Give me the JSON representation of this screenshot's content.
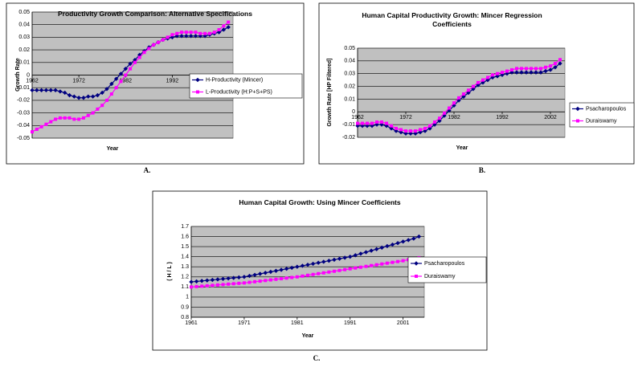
{
  "chart_data": [
    {
      "type": "line",
      "title": "Productivity Growth Comparison: Alternative Specifications",
      "xlabel": "Year",
      "ylabel": "Growth Rate",
      "caption": "A.",
      "x": [
        1962,
        1963,
        1964,
        1965,
        1966,
        1967,
        1968,
        1969,
        1970,
        1971,
        1972,
        1973,
        1974,
        1975,
        1976,
        1977,
        1978,
        1979,
        1980,
        1981,
        1982,
        1983,
        1984,
        1985,
        1986,
        1987,
        1988,
        1989,
        1990,
        1991,
        1992,
        1993,
        1994,
        1995,
        1996,
        1997,
        1998,
        1999,
        2000,
        2001,
        2002,
        2003,
        2004
      ],
      "xlim": [
        1962,
        2005
      ],
      "xticks": [
        1962,
        1972,
        1982,
        1992,
        2002
      ],
      "ylim": [
        -0.05,
        0.05
      ],
      "yticks": [
        -0.05,
        -0.04,
        -0.03,
        -0.02,
        -0.01,
        0,
        0.01,
        0.02,
        0.03,
        0.04,
        0.05
      ],
      "grid": true,
      "series": [
        {
          "name": "H-Productivity (Mincer)",
          "color": "#000080",
          "marker": "diamond",
          "values": [
            -0.012,
            -0.012,
            -0.012,
            -0.012,
            -0.012,
            -0.012,
            -0.013,
            -0.014,
            -0.016,
            -0.017,
            -0.018,
            -0.018,
            -0.017,
            -0.017,
            -0.016,
            -0.014,
            -0.011,
            -0.007,
            -0.003,
            0.001,
            0.005,
            0.009,
            0.012,
            0.016,
            0.019,
            0.022,
            0.024,
            0.026,
            0.028,
            0.029,
            0.03,
            0.031,
            0.031,
            0.031,
            0.031,
            0.031,
            0.031,
            0.031,
            0.032,
            0.033,
            0.034,
            0.036,
            0.038
          ]
        },
        {
          "name": "L-Productivity (H:P+S+PS)",
          "color": "#ff00ff",
          "marker": "square",
          "values": [
            -0.045,
            -0.043,
            -0.041,
            -0.039,
            -0.037,
            -0.035,
            -0.034,
            -0.034,
            -0.034,
            -0.035,
            -0.035,
            -0.034,
            -0.032,
            -0.03,
            -0.027,
            -0.024,
            -0.02,
            -0.015,
            -0.01,
            -0.005,
            0.0,
            0.005,
            0.01,
            0.014,
            0.018,
            0.021,
            0.024,
            0.026,
            0.028,
            0.03,
            0.032,
            0.033,
            0.034,
            0.034,
            0.034,
            0.034,
            0.033,
            0.033,
            0.033,
            0.034,
            0.036,
            0.039,
            0.042
          ]
        }
      ]
    },
    {
      "type": "line",
      "title": "Human Capital Productivity Growth: Mincer Regression Coefficients",
      "xlabel": "Year",
      "ylabel": "Growth Rate [HP Filtered]",
      "caption": "B.",
      "x": [
        1962,
        1963,
        1964,
        1965,
        1966,
        1967,
        1968,
        1969,
        1970,
        1971,
        1972,
        1973,
        1974,
        1975,
        1976,
        1977,
        1978,
        1979,
        1980,
        1981,
        1982,
        1983,
        1984,
        1985,
        1986,
        1987,
        1988,
        1989,
        1990,
        1991,
        1992,
        1993,
        1994,
        1995,
        1996,
        1997,
        1998,
        1999,
        2000,
        2001,
        2002,
        2003,
        2004
      ],
      "xlim": [
        1962,
        2005
      ],
      "xticks": [
        1962,
        1972,
        1982,
        1992,
        2002
      ],
      "ylim": [
        -0.02,
        0.05
      ],
      "yticks": [
        -0.02,
        -0.01,
        0,
        0.01,
        0.02,
        0.03,
        0.04,
        0.05
      ],
      "grid": true,
      "series": [
        {
          "name": "Psacharopoulos",
          "color": "#000080",
          "marker": "diamond",
          "values": [
            -0.011,
            -0.011,
            -0.011,
            -0.011,
            -0.01,
            -0.01,
            -0.011,
            -0.013,
            -0.015,
            -0.016,
            -0.017,
            -0.017,
            -0.017,
            -0.016,
            -0.015,
            -0.013,
            -0.01,
            -0.007,
            -0.003,
            0.001,
            0.005,
            0.009,
            0.012,
            0.015,
            0.018,
            0.021,
            0.023,
            0.025,
            0.027,
            0.028,
            0.029,
            0.03,
            0.031,
            0.031,
            0.031,
            0.031,
            0.031,
            0.031,
            0.031,
            0.032,
            0.033,
            0.035,
            0.038
          ]
        },
        {
          "name": "Duraiswamy",
          "color": "#ff00ff",
          "marker": "square",
          "values": [
            -0.009,
            -0.009,
            -0.009,
            -0.009,
            -0.008,
            -0.008,
            -0.009,
            -0.011,
            -0.013,
            -0.014,
            -0.015,
            -0.015,
            -0.015,
            -0.014,
            -0.013,
            -0.011,
            -0.008,
            -0.005,
            -0.001,
            0.003,
            0.007,
            0.011,
            0.014,
            0.017,
            0.02,
            0.023,
            0.025,
            0.027,
            0.029,
            0.03,
            0.031,
            0.032,
            0.033,
            0.034,
            0.034,
            0.034,
            0.034,
            0.034,
            0.034,
            0.035,
            0.036,
            0.038,
            0.041
          ]
        }
      ]
    },
    {
      "type": "line",
      "title": "Human Capital Growth: Using Mincer Coefficients",
      "xlabel": "Year",
      "ylabel": "( H / L )",
      "caption": "C.",
      "x": [
        1961,
        1962,
        1963,
        1964,
        1965,
        1966,
        1967,
        1968,
        1969,
        1970,
        1971,
        1972,
        1973,
        1974,
        1975,
        1976,
        1977,
        1978,
        1979,
        1980,
        1981,
        1982,
        1983,
        1984,
        1985,
        1986,
        1987,
        1988,
        1989,
        1990,
        1991,
        1992,
        1993,
        1994,
        1995,
        1996,
        1997,
        1998,
        1999,
        2000,
        2001,
        2002,
        2003,
        2004
      ],
      "xlim": [
        1961,
        2005
      ],
      "xticks": [
        1961,
        1971,
        1981,
        1991,
        2001
      ],
      "ylim": [
        0.8,
        1.7
      ],
      "yticks": [
        0.8,
        0.9,
        1,
        1.1,
        1.2,
        1.3,
        1.4,
        1.5,
        1.6,
        1.7
      ],
      "grid": true,
      "series": [
        {
          "name": "Psacharopoulos",
          "color": "#000080",
          "marker": "diamond",
          "values": [
            1.15,
            1.155,
            1.16,
            1.165,
            1.17,
            1.175,
            1.18,
            1.185,
            1.19,
            1.195,
            1.2,
            1.21,
            1.22,
            1.23,
            1.24,
            1.25,
            1.26,
            1.27,
            1.28,
            1.29,
            1.3,
            1.31,
            1.32,
            1.33,
            1.34,
            1.35,
            1.36,
            1.37,
            1.38,
            1.39,
            1.4,
            1.415,
            1.43,
            1.445,
            1.46,
            1.475,
            1.49,
            1.505,
            1.52,
            1.535,
            1.55,
            1.565,
            1.58,
            1.6
          ]
        },
        {
          "name": "Duraiswamy",
          "color": "#ff00ff",
          "marker": "square",
          "values": [
            1.1,
            1.104,
            1.108,
            1.112,
            1.116,
            1.12,
            1.124,
            1.128,
            1.132,
            1.136,
            1.14,
            1.146,
            1.152,
            1.158,
            1.164,
            1.17,
            1.176,
            1.182,
            1.188,
            1.194,
            1.2,
            1.208,
            1.216,
            1.224,
            1.232,
            1.24,
            1.248,
            1.256,
            1.264,
            1.272,
            1.28,
            1.288,
            1.296,
            1.304,
            1.312,
            1.32,
            1.328,
            1.336,
            1.344,
            1.352,
            1.36,
            1.37,
            1.38,
            1.39
          ]
        }
      ]
    }
  ]
}
